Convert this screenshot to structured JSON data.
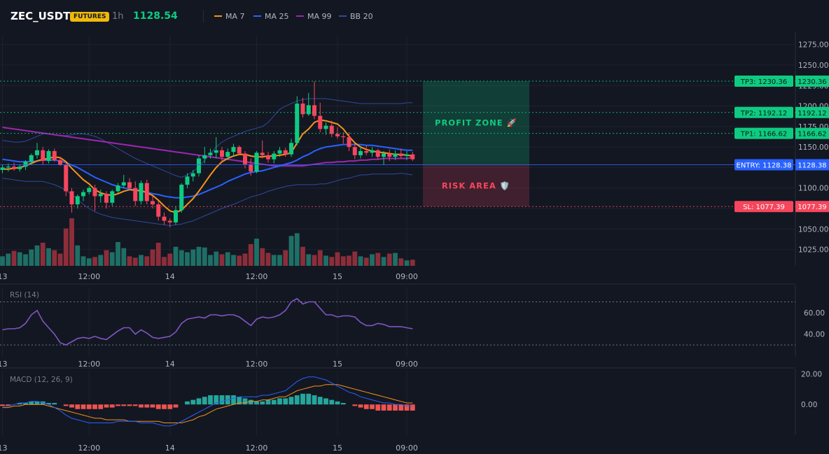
{
  "header": {
    "symbol": "ZEC_USDT",
    "badge": "FUTURES",
    "timeframe": "1h",
    "last_price": "1128.54",
    "legend": [
      {
        "name": "MA 7",
        "color": "#f7931a"
      },
      {
        "name": "MA 25",
        "color": "#2962ff"
      },
      {
        "name": "MA 99",
        "color": "#9c27b0"
      },
      {
        "name": "BB 20",
        "color": "#2f4a9c"
      }
    ]
  },
  "colors": {
    "up": "#0ecb81",
    "down": "#f6465d",
    "vol_up": "#1f6f66",
    "vol_down": "#8c2e3a",
    "bg": "#131722",
    "grid": "#1e222d",
    "text": "#b2b5be",
    "rsi": "#7e57c2",
    "macd": "#2962ff",
    "signal": "#f7931a",
    "hist_up": "#26a69a",
    "hist_down": "#ef5350"
  },
  "chart_data": [
    {
      "type": "candlestick",
      "name": "price",
      "y_ticks": [
        "1275.00",
        "1250.00",
        "1225.00",
        "1200.00",
        "1175.00",
        "1150.00",
        "1125.00",
        "1100.00",
        "1075.00",
        "1050.00",
        "1025.00"
      ],
      "ylim": [
        1005,
        1285
      ],
      "x_labels": [
        "13",
        "12:00",
        "14",
        "12:00",
        "15",
        "09:00"
      ],
      "candles": [
        {
          "o": 1122,
          "h": 1128,
          "l": 1118,
          "c": 1125
        },
        {
          "o": 1125,
          "h": 1130,
          "l": 1120,
          "c": 1126
        },
        {
          "o": 1126,
          "h": 1131,
          "l": 1121,
          "c": 1123
        },
        {
          "o": 1123,
          "h": 1129,
          "l": 1120,
          "c": 1126
        },
        {
          "o": 1126,
          "h": 1134,
          "l": 1122,
          "c": 1132
        },
        {
          "o": 1132,
          "h": 1142,
          "l": 1128,
          "c": 1140
        },
        {
          "o": 1140,
          "h": 1155,
          "l": 1136,
          "c": 1146
        },
        {
          "o": 1146,
          "h": 1150,
          "l": 1128,
          "c": 1133
        },
        {
          "o": 1133,
          "h": 1147,
          "l": 1130,
          "c": 1145
        },
        {
          "o": 1145,
          "h": 1148,
          "l": 1132,
          "c": 1134
        },
        {
          "o": 1134,
          "h": 1138,
          "l": 1127,
          "c": 1128
        },
        {
          "o": 1128,
          "h": 1130,
          "l": 1090,
          "c": 1096
        },
        {
          "o": 1096,
          "h": 1100,
          "l": 1070,
          "c": 1080
        },
        {
          "o": 1080,
          "h": 1092,
          "l": 1075,
          "c": 1090
        },
        {
          "o": 1090,
          "h": 1098,
          "l": 1084,
          "c": 1095
        },
        {
          "o": 1095,
          "h": 1102,
          "l": 1092,
          "c": 1100
        },
        {
          "o": 1100,
          "h": 1104,
          "l": 1072,
          "c": 1090
        },
        {
          "o": 1090,
          "h": 1098,
          "l": 1082,
          "c": 1093
        },
        {
          "o": 1093,
          "h": 1096,
          "l": 1075,
          "c": 1082
        },
        {
          "o": 1082,
          "h": 1098,
          "l": 1078,
          "c": 1096
        },
        {
          "o": 1096,
          "h": 1106,
          "l": 1094,
          "c": 1103
        },
        {
          "o": 1103,
          "h": 1116,
          "l": 1100,
          "c": 1107
        },
        {
          "o": 1107,
          "h": 1112,
          "l": 1097,
          "c": 1100
        },
        {
          "o": 1100,
          "h": 1108,
          "l": 1078,
          "c": 1084
        },
        {
          "o": 1084,
          "h": 1109,
          "l": 1080,
          "c": 1106
        },
        {
          "o": 1106,
          "h": 1110,
          "l": 1080,
          "c": 1084
        },
        {
          "o": 1084,
          "h": 1090,
          "l": 1075,
          "c": 1080
        },
        {
          "o": 1080,
          "h": 1084,
          "l": 1060,
          "c": 1065
        },
        {
          "o": 1065,
          "h": 1070,
          "l": 1055,
          "c": 1060
        },
        {
          "o": 1060,
          "h": 1063,
          "l": 1052,
          "c": 1058
        },
        {
          "o": 1058,
          "h": 1078,
          "l": 1055,
          "c": 1073
        },
        {
          "o": 1073,
          "h": 1106,
          "l": 1070,
          "c": 1104
        },
        {
          "o": 1104,
          "h": 1118,
          "l": 1100,
          "c": 1114
        },
        {
          "o": 1114,
          "h": 1122,
          "l": 1108,
          "c": 1118
        },
        {
          "o": 1118,
          "h": 1140,
          "l": 1114,
          "c": 1136
        },
        {
          "o": 1136,
          "h": 1150,
          "l": 1130,
          "c": 1140
        },
        {
          "o": 1140,
          "h": 1148,
          "l": 1136,
          "c": 1143
        },
        {
          "o": 1143,
          "h": 1162,
          "l": 1136,
          "c": 1146
        },
        {
          "o": 1146,
          "h": 1150,
          "l": 1132,
          "c": 1138
        },
        {
          "o": 1138,
          "h": 1148,
          "l": 1134,
          "c": 1144
        },
        {
          "o": 1144,
          "h": 1154,
          "l": 1138,
          "c": 1150
        },
        {
          "o": 1150,
          "h": 1152,
          "l": 1140,
          "c": 1142
        },
        {
          "o": 1142,
          "h": 1145,
          "l": 1124,
          "c": 1129
        },
        {
          "o": 1129,
          "h": 1136,
          "l": 1115,
          "c": 1120
        },
        {
          "o": 1120,
          "h": 1145,
          "l": 1118,
          "c": 1143
        },
        {
          "o": 1143,
          "h": 1158,
          "l": 1136,
          "c": 1140
        },
        {
          "o": 1140,
          "h": 1144,
          "l": 1131,
          "c": 1135
        },
        {
          "o": 1135,
          "h": 1145,
          "l": 1130,
          "c": 1142
        },
        {
          "o": 1142,
          "h": 1150,
          "l": 1138,
          "c": 1146
        },
        {
          "o": 1146,
          "h": 1149,
          "l": 1138,
          "c": 1141
        },
        {
          "o": 1141,
          "h": 1160,
          "l": 1138,
          "c": 1155
        },
        {
          "o": 1155,
          "h": 1212,
          "l": 1152,
          "c": 1203
        },
        {
          "o": 1203,
          "h": 1210,
          "l": 1186,
          "c": 1190
        },
        {
          "o": 1190,
          "h": 1216,
          "l": 1188,
          "c": 1201
        },
        {
          "o": 1201,
          "h": 1230,
          "l": 1184,
          "c": 1188
        },
        {
          "o": 1188,
          "h": 1204,
          "l": 1168,
          "c": 1172
        },
        {
          "o": 1172,
          "h": 1180,
          "l": 1165,
          "c": 1176
        },
        {
          "o": 1176,
          "h": 1182,
          "l": 1162,
          "c": 1166
        },
        {
          "o": 1166,
          "h": 1174,
          "l": 1160,
          "c": 1163
        },
        {
          "o": 1163,
          "h": 1168,
          "l": 1154,
          "c": 1162
        },
        {
          "o": 1162,
          "h": 1168,
          "l": 1145,
          "c": 1150
        },
        {
          "o": 1150,
          "h": 1154,
          "l": 1135,
          "c": 1140
        },
        {
          "o": 1140,
          "h": 1150,
          "l": 1136,
          "c": 1145
        },
        {
          "o": 1145,
          "h": 1152,
          "l": 1140,
          "c": 1143
        },
        {
          "o": 1143,
          "h": 1150,
          "l": 1138,
          "c": 1146
        },
        {
          "o": 1146,
          "h": 1148,
          "l": 1135,
          "c": 1138
        },
        {
          "o": 1138,
          "h": 1145,
          "l": 1128,
          "c": 1142
        },
        {
          "o": 1142,
          "h": 1147,
          "l": 1133,
          "c": 1138
        },
        {
          "o": 1138,
          "h": 1146,
          "l": 1134,
          "c": 1142
        },
        {
          "o": 1142,
          "h": 1148,
          "l": 1136,
          "c": 1139
        },
        {
          "o": 1139,
          "h": 1145,
          "l": 1134,
          "c": 1141
        },
        {
          "o": 1141,
          "h": 1144,
          "l": 1133,
          "c": 1135
        }
      ],
      "ma7": [
        1123,
        1123,
        1124,
        1125,
        1127,
        1130,
        1133,
        1135,
        1136,
        1138,
        1137,
        1132,
        1124,
        1117,
        1110,
        1105,
        1098,
        1094,
        1092,
        1091,
        1093,
        1096,
        1098,
        1097,
        1097,
        1094,
        1091,
        1085,
        1078,
        1072,
        1070,
        1073,
        1080,
        1087,
        1096,
        1106,
        1116,
        1125,
        1132,
        1136,
        1139,
        1141,
        1141,
        1139,
        1138,
        1138,
        1139,
        1139,
        1140,
        1141,
        1143,
        1155,
        1166,
        1172,
        1180,
        1183,
        1182,
        1180,
        1178,
        1172,
        1163,
        1155,
        1150,
        1147,
        1145,
        1144,
        1143,
        1142,
        1141,
        1141,
        1140,
        1139
      ],
      "ma25": [
        1135,
        1134,
        1133,
        1132,
        1132,
        1132,
        1133,
        1134,
        1134,
        1134,
        1133,
        1131,
        1128,
        1125,
        1121,
        1117,
        1113,
        1110,
        1107,
        1104,
        1102,
        1100,
        1099,
        1097,
        1096,
        1095,
        1093,
        1092,
        1090,
        1089,
        1088,
        1088,
        1089,
        1090,
        1092,
        1095,
        1098,
        1101,
        1104,
        1108,
        1111,
        1114,
        1117,
        1119,
        1120,
        1121,
        1123,
        1125,
        1127,
        1129,
        1131,
        1134,
        1138,
        1141,
        1145,
        1148,
        1150,
        1151,
        1152,
        1153,
        1153,
        1153,
        1153,
        1152,
        1152,
        1151,
        1150,
        1149,
        1148,
        1147,
        1146,
        1146
      ],
      "ma99": [
        1174,
        1173,
        1172,
        1171,
        1170,
        1169,
        1168,
        1167,
        1166,
        1165,
        1164,
        1163,
        1162,
        1161,
        1160,
        1159,
        1158,
        1157,
        1156,
        1155,
        1154,
        1153,
        1152,
        1151,
        1150,
        1149,
        1148,
        1147,
        1146,
        1145,
        1144,
        1143,
        1142,
        1141,
        1140,
        1139,
        1138,
        1137,
        1136,
        1135,
        1134,
        1133,
        1132,
        1131,
        1130,
        1129,
        1128,
        1127,
        1127,
        1127,
        1127,
        1127,
        1127,
        1128,
        1129,
        1130,
        1131,
        1131,
        1132,
        1132,
        1133,
        1133,
        1134,
        1134,
        1135,
        1135,
        1136,
        1136,
        1136,
        1136,
        1136,
        1137
      ],
      "bb_upper": [
        1158,
        1157,
        1156,
        1156,
        1157,
        1160,
        1163,
        1166,
        1166,
        1165,
        1164,
        1164,
        1165,
        1166,
        1166,
        1165,
        1163,
        1160,
        1156,
        1152,
        1148,
        1144,
        1140,
        1136,
        1133,
        1130,
        1127,
        1124,
        1121,
        1118,
        1115,
        1113,
        1116,
        1120,
        1126,
        1134,
        1142,
        1150,
        1156,
        1160,
        1163,
        1166,
        1169,
        1171,
        1173,
        1175,
        1180,
        1188,
        1196,
        1200,
        1203,
        1206,
        1208,
        1209,
        1209,
        1209,
        1209,
        1208,
        1207,
        1206,
        1205,
        1204,
        1203,
        1203,
        1203,
        1203,
        1203,
        1203,
        1203,
        1203,
        1204,
        1204
      ],
      "bb_lower": [
        1112,
        1111,
        1110,
        1109,
        1108,
        1108,
        1108,
        1108,
        1106,
        1104,
        1101,
        1097,
        1092,
        1086,
        1080,
        1075,
        1071,
        1068,
        1066,
        1064,
        1063,
        1062,
        1061,
        1060,
        1059,
        1058,
        1057,
        1056,
        1055,
        1054,
        1055,
        1056,
        1058,
        1060,
        1063,
        1066,
        1069,
        1072,
        1075,
        1078,
        1080,
        1083,
        1086,
        1089,
        1091,
        1093,
        1096,
        1098,
        1100,
        1102,
        1103,
        1104,
        1104,
        1104,
        1104,
        1105,
        1105,
        1107,
        1109,
        1111,
        1112,
        1114,
        1116,
        1116,
        1117,
        1117,
        1117,
        1117,
        1117,
        1118,
        1117,
        1116
      ],
      "volume": [
        14,
        18,
        22,
        20,
        17,
        24,
        30,
        34,
        26,
        23,
        18,
        55,
        70,
        30,
        14,
        11,
        13,
        16,
        23,
        20,
        35,
        26,
        14,
        12,
        16,
        14,
        24,
        34,
        13,
        18,
        28,
        23,
        20,
        24,
        28,
        27,
        16,
        21,
        17,
        20,
        16,
        15,
        18,
        32,
        40,
        26,
        19,
        16,
        16,
        23,
        44,
        48,
        28,
        17,
        16,
        23,
        15,
        13,
        20,
        14,
        15,
        21,
        14,
        12,
        17,
        19,
        13,
        18,
        19,
        11,
        8,
        9
      ],
      "levels": {
        "tp3": {
          "label": "TP3: 1230.36",
          "value": 1230.36,
          "price": "1230.36"
        },
        "tp2": {
          "label": "TP2: 1192.12",
          "value": 1192.12,
          "price": "1192.12"
        },
        "tp1": {
          "label": "TP1: 1166.62",
          "value": 1166.62,
          "price": "1166.62"
        },
        "entry": {
          "label": "ENTRY: 1128.38",
          "value": 1128.38,
          "price": "1128.38"
        },
        "sl": {
          "label": "SL: 1077.39",
          "value": 1077.39,
          "price": "1077.39"
        }
      },
      "zones": {
        "profit": "PROFIT ZONE 🚀",
        "risk": "RISK AREA 🛡️"
      }
    },
    {
      "type": "line",
      "name": "rsi",
      "label": "RSI (14)",
      "y_ticks": [
        "60.00",
        "40.00"
      ],
      "ylim": [
        19,
        84
      ],
      "bands": [
        70,
        30
      ],
      "x_labels": [
        "13",
        "12:00",
        "14",
        "12:00",
        "15",
        "09:00"
      ],
      "values": [
        44,
        45,
        45,
        46,
        50,
        58,
        62,
        52,
        46,
        40,
        32,
        30,
        33,
        36,
        37,
        36,
        38,
        36,
        35,
        39,
        43,
        46,
        46,
        40,
        44,
        41,
        37,
        36,
        37,
        38,
        42,
        50,
        54,
        55,
        56,
        55,
        58,
        58,
        57,
        58,
        58,
        56,
        52,
        48,
        54,
        56,
        55,
        56,
        58,
        62,
        70,
        73,
        68,
        70,
        70,
        64,
        58,
        58,
        56,
        57,
        57,
        56,
        51,
        48,
        48,
        50,
        49,
        47,
        47,
        47,
        46,
        45
      ]
    },
    {
      "type": "bar+line",
      "name": "macd",
      "label": "MACD (12, 26, 9)",
      "y_ticks": [
        "20.00",
        "0.00"
      ],
      "ylim": [
        -20,
        22
      ],
      "x_labels": [
        "13",
        "12:00",
        "14",
        "12:00",
        "15",
        "09:00"
      ],
      "histogram": [
        -1,
        -1,
        0,
        1,
        1,
        2,
        2,
        2,
        1,
        1,
        0,
        -1,
        -2,
        -3,
        -3,
        -3,
        -3,
        -3,
        -2,
        -2,
        -1,
        -1,
        -1,
        -1,
        -2,
        -2,
        -2,
        -3,
        -3,
        -3,
        -2,
        0,
        2,
        3,
        4,
        5,
        6,
        6,
        6,
        6,
        6,
        5,
        4,
        3,
        2,
        2,
        3,
        3,
        4,
        4,
        5,
        6,
        7,
        7,
        6,
        5,
        4,
        3,
        2,
        1,
        0,
        -1,
        -2,
        -3,
        -3,
        -4,
        -4,
        -4,
        -4,
        -4,
        -4,
        -4
      ],
      "macd_line": [
        -1,
        -1,
        0,
        1,
        1,
        2,
        2,
        1,
        0,
        -2,
        -4,
        -7,
        -9,
        -10,
        -11,
        -12,
        -12,
        -12,
        -12,
        -12,
        -11,
        -11,
        -11,
        -11,
        -12,
        -12,
        -12,
        -13,
        -14,
        -14,
        -13,
        -11,
        -9,
        -7,
        -5,
        -3,
        -1,
        1,
        2,
        3,
        4,
        5,
        5,
        5,
        5,
        6,
        6,
        7,
        8,
        9,
        12,
        15,
        17,
        18,
        18,
        17,
        16,
        14,
        12,
        10,
        8,
        7,
        5,
        4,
        3,
        2,
        1,
        1,
        0,
        0,
        -1,
        -1
      ],
      "signal_line": [
        -2,
        -2,
        -1,
        -1,
        0,
        0,
        0,
        0,
        -1,
        -2,
        -3,
        -4,
        -5,
        -6,
        -7,
        -8,
        -9,
        -9,
        -10,
        -10,
        -10,
        -10,
        -11,
        -11,
        -11,
        -11,
        -11,
        -11,
        -12,
        -12,
        -12,
        -12,
        -11,
        -10,
        -8,
        -7,
        -5,
        -3,
        -2,
        -1,
        0,
        1,
        1,
        2,
        2,
        3,
        3,
        4,
        5,
        5,
        7,
        9,
        10,
        11,
        12,
        12,
        13,
        13,
        13,
        12,
        11,
        10,
        9,
        8,
        7,
        6,
        5,
        4,
        3,
        2,
        1,
        1
      ]
    }
  ]
}
